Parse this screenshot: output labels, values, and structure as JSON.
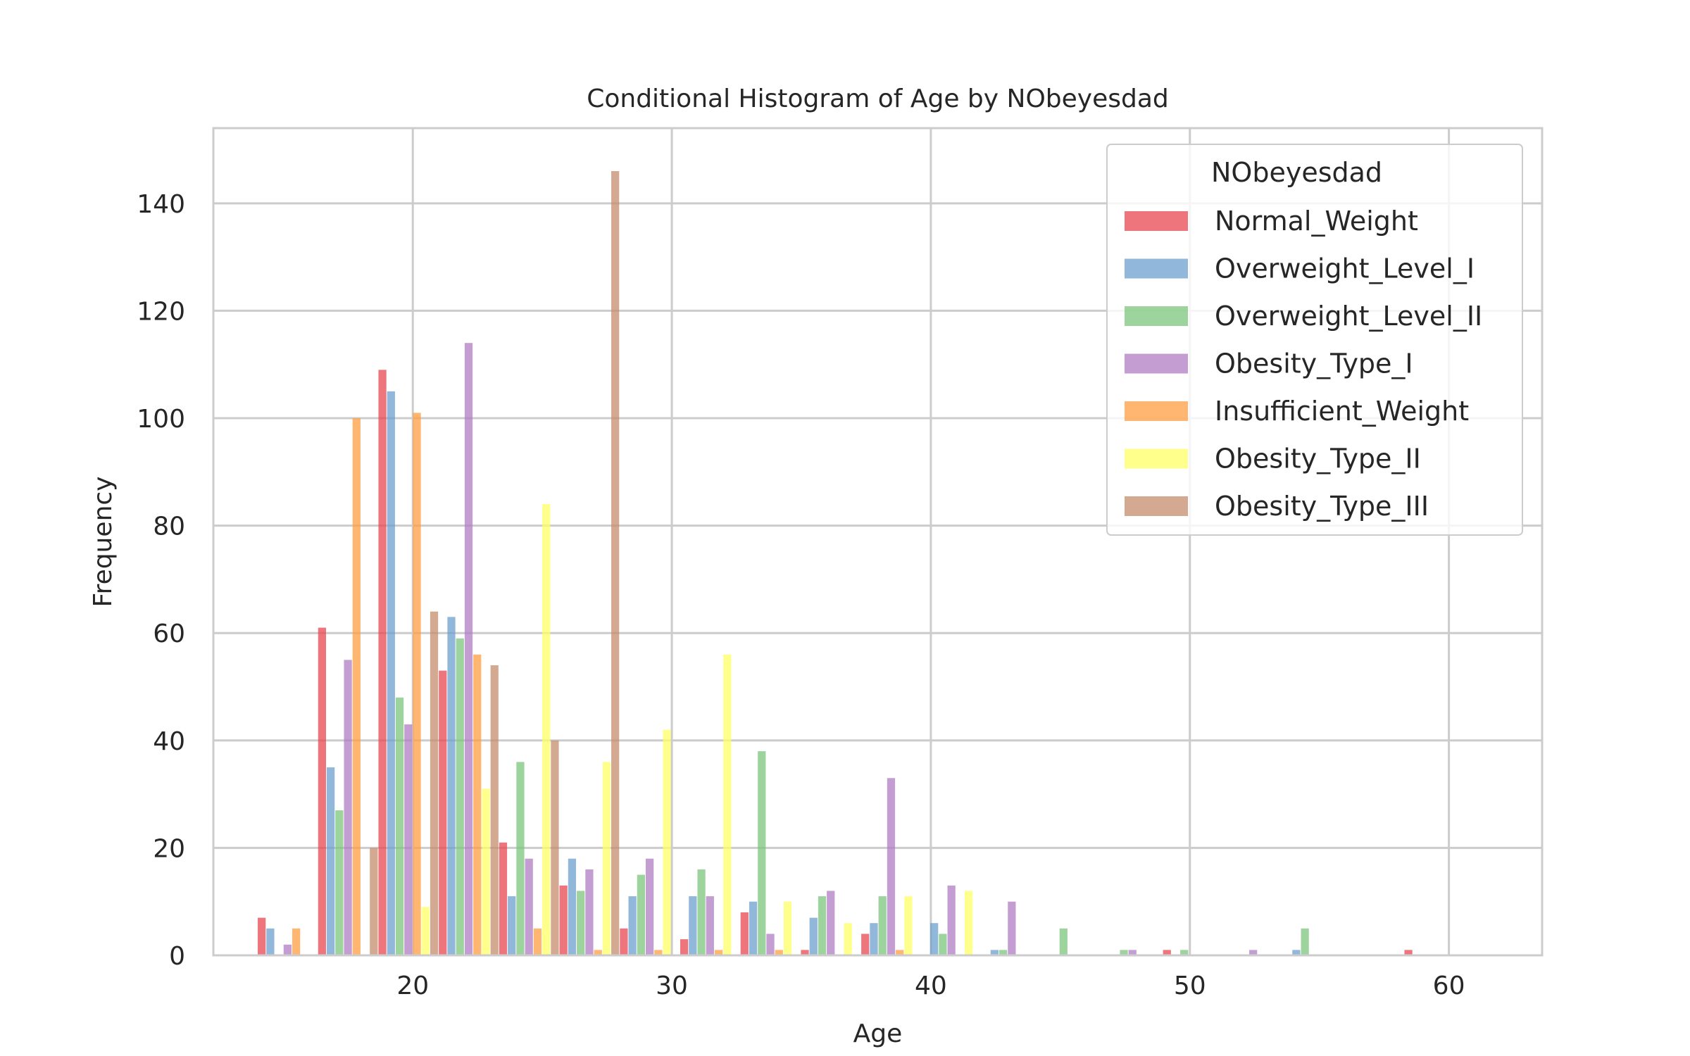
{
  "chart_data": {
    "type": "bar",
    "title": "Conditional Histogram of Age by NObeyesdad",
    "xlabel": "Age",
    "ylabel": "Frequency",
    "xlim": [
      12.3,
      63.6
    ],
    "ylim": [
      0,
      154
    ],
    "xticks": [
      20,
      30,
      40,
      50,
      60
    ],
    "yticks": [
      0,
      20,
      40,
      60,
      80,
      100,
      120,
      140
    ],
    "grid": true,
    "legend": {
      "title": "NObeyesdad",
      "placement": "top-right"
    },
    "bin_width": 2.33,
    "bin_starts": [
      14.0,
      16.33,
      18.66,
      20.99,
      23.32,
      25.65,
      27.98,
      30.31,
      32.64,
      34.97,
      37.3,
      39.63,
      41.96,
      44.29,
      46.62,
      48.95,
      51.28,
      53.61,
      55.94,
      58.27
    ],
    "series": [
      {
        "name": "Normal_Weight",
        "color": "#e8474f",
        "values": [
          7,
          61,
          109,
          53,
          21,
          13,
          5,
          3,
          8,
          1,
          4,
          0,
          0,
          0,
          0,
          1,
          0,
          0,
          0,
          1
        ]
      },
      {
        "name": "Overweight_Level_I",
        "color": "#6c9fcf",
        "values": [
          5,
          35,
          105,
          63,
          11,
          18,
          11,
          11,
          10,
          7,
          6,
          6,
          1,
          0,
          0,
          0,
          0,
          1,
          0,
          0
        ]
      },
      {
        "name": "Overweight_Level_II",
        "color": "#7cc47c",
        "values": [
          0,
          27,
          48,
          59,
          36,
          12,
          15,
          16,
          38,
          11,
          11,
          4,
          1,
          5,
          1,
          1,
          0,
          5,
          0,
          0
        ]
      },
      {
        "name": "Obesity_Type_I",
        "color": "#b07cc3",
        "values": [
          2,
          55,
          43,
          114,
          18,
          16,
          18,
          11,
          4,
          12,
          33,
          13,
          10,
          0,
          1,
          0,
          1,
          0,
          0,
          0
        ]
      },
      {
        "name": "Insufficient_Weight",
        "color": "#ff9e40",
        "values": [
          5,
          100,
          101,
          56,
          5,
          1,
          1,
          1,
          1,
          0,
          1,
          0,
          0,
          0,
          0,
          0,
          0,
          0,
          0,
          0
        ]
      },
      {
        "name": "Obesity_Type_II",
        "color": "#ffff66",
        "values": [
          0,
          0,
          9,
          31,
          84,
          36,
          42,
          56,
          10,
          6,
          11,
          12,
          0,
          0,
          0,
          0,
          0,
          0,
          0,
          0
        ]
      },
      {
        "name": "Obesity_Type_III",
        "color": "#c48c6c",
        "values": [
          0,
          20,
          64,
          54,
          40,
          146,
          0,
          0,
          0,
          0,
          0,
          0,
          0,
          0,
          0,
          0,
          0,
          0,
          0,
          0
        ]
      }
    ]
  }
}
